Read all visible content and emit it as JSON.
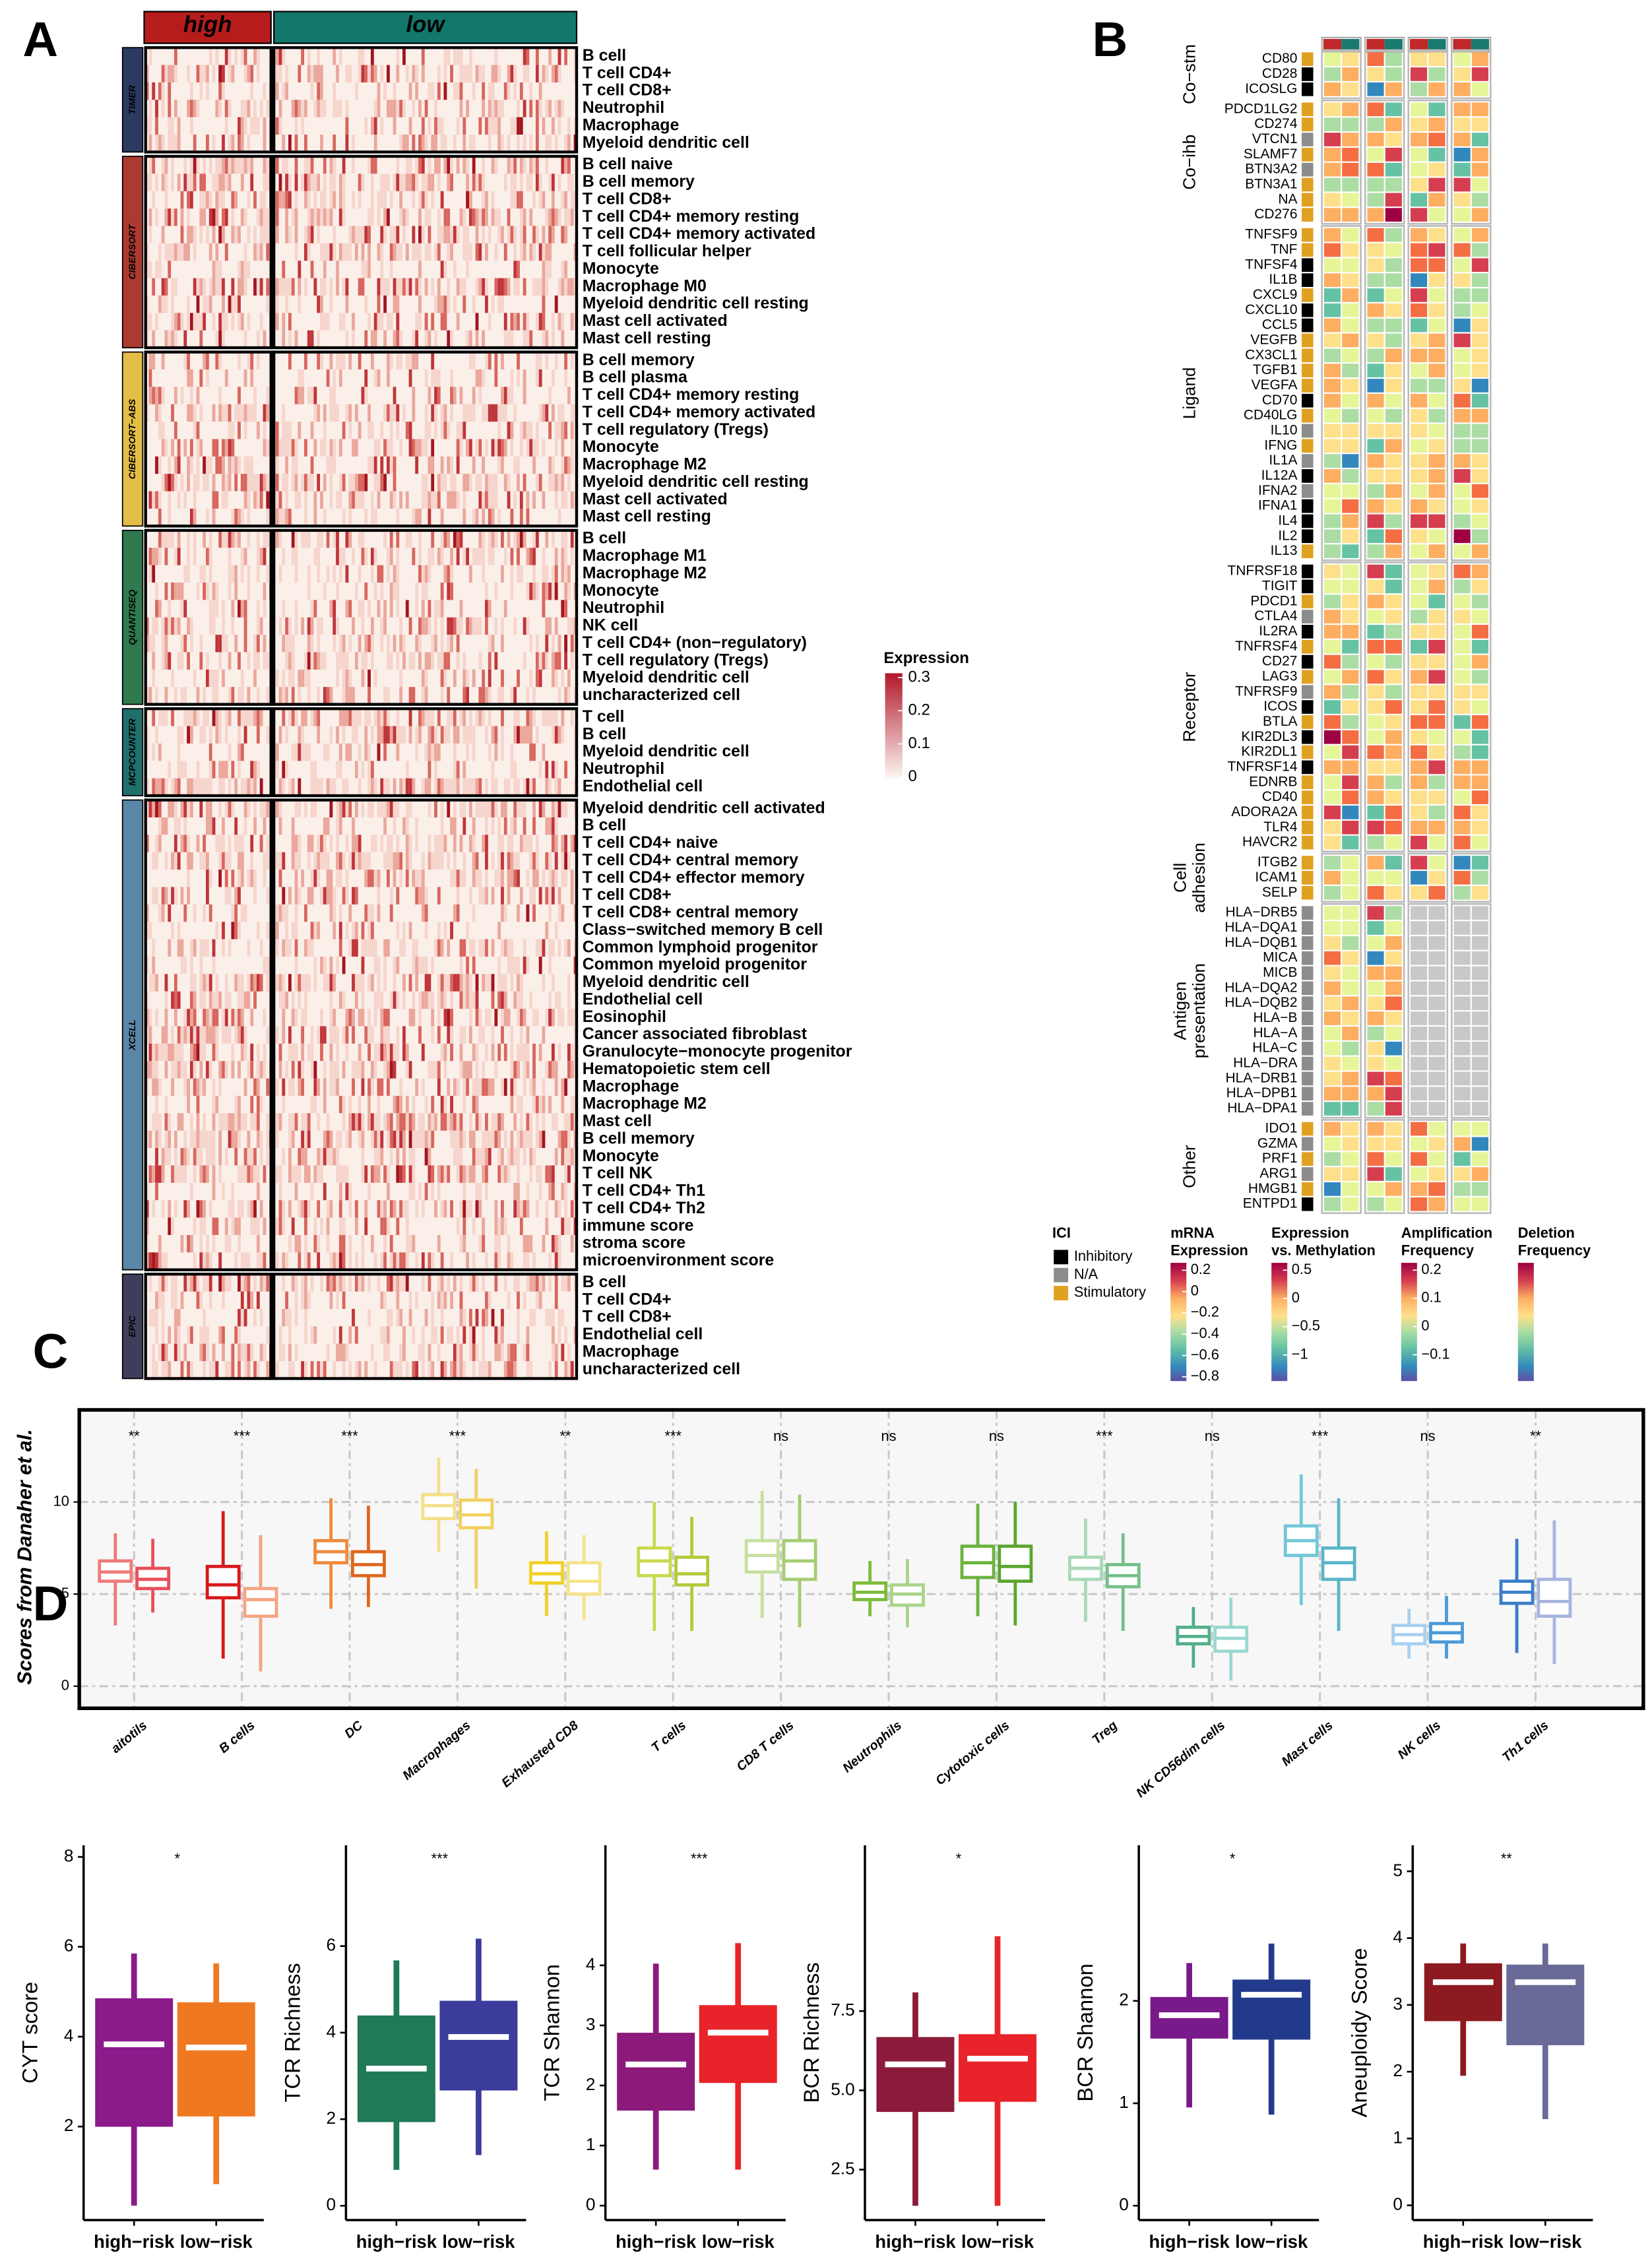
{
  "chart_data": [
    {
      "type": "heatmap",
      "panel": "A",
      "columns": [
        "high",
        "low"
      ],
      "column_colors": [
        "#b71c1c",
        "#13776b"
      ],
      "groups": [
        {
          "name": "TIMER",
          "color": "#2c3a62",
          "rows": [
            "B cell",
            "T cell CD4+",
            "T cell CD8+",
            "Neutrophil",
            "Macrophage",
            "Myeloid dendritic cell"
          ]
        },
        {
          "name": "CIBERSORT",
          "color": "#ab3a30",
          "rows": [
            "B cell naive",
            "B cell memory",
            "T cell CD8+",
            "T cell CD4+ memory resting",
            "T cell CD4+ memory activated",
            "T cell follicular helper",
            "Monocyte",
            "Macrophage M0",
            "Myeloid dendritic cell resting",
            "Mast cell activated",
            "Mast cell resting"
          ]
        },
        {
          "name": "CIBERSORT−ABS",
          "color": "#e3bd45",
          "rows": [
            "B cell memory",
            "B cell plasma",
            "T cell CD4+ memory resting",
            "T cell CD4+ memory activated",
            "T cell regulatory (Tregs)",
            "Monocyte",
            "Macrophage M2",
            "Myeloid dendritic cell resting",
            "Mast cell activated",
            "Mast cell resting"
          ]
        },
        {
          "name": "QUANTISEQ",
          "color": "#2f7a4e",
          "rows": [
            "B cell",
            "Macrophage M1",
            "Macrophage M2",
            "Monocyte",
            "Neutrophil",
            "NK cell",
            "T cell CD4+ (non−regulatory)",
            "T cell regulatory (Tregs)",
            "Myeloid dendritic cell",
            "uncharacterized cell"
          ]
        },
        {
          "name": "MCPCOUNTER",
          "color": "#1f6f6b",
          "rows": [
            "T cell",
            "B cell",
            "Myeloid dendritic cell",
            "Neutrophil",
            "Endothelial cell"
          ]
        },
        {
          "name": "XCELL",
          "color": "#5a86a8",
          "rows": [
            "Myeloid dendritic cell activated",
            "B cell",
            "T cell CD4+ naive",
            "T cell CD4+ central memory",
            "T cell CD4+ effector memory",
            "T cell CD8+",
            "T cell CD8+ central memory",
            "Class−switched memory B cell",
            "Common lymphoid progenitor",
            "Common myeloid progenitor",
            "Myeloid dendritic cell",
            "Endothelial cell",
            "Eosinophil",
            "Cancer associated fibroblast",
            "Granulocyte−monocyte progenitor",
            "Hematopoietic stem cell",
            "Macrophage",
            "Macrophage M2",
            "Mast cell",
            "B cell memory",
            "Monocyte",
            "T cell NK",
            "T cell CD4+ Th1",
            "T cell CD4+ Th2",
            "immune score",
            "stroma score",
            "microenvironment score"
          ]
        },
        {
          "name": "EPIC",
          "color": "#3d3f5a",
          "rows": [
            "B cell",
            "T cell CD4+",
            "T cell CD8+",
            "Endothelial cell",
            "Macrophage",
            "uncharacterized cell"
          ]
        }
      ],
      "legend_title": "Expression",
      "colorbar_lim": [
        0,
        0.3
      ],
      "colorbar_ticks": [
        0.3,
        0.2,
        0.1,
        0
      ],
      "colorbar_colors": [
        "#fdf6f2",
        "#b2182b"
      ]
    },
    {
      "type": "heatmap",
      "panel": "B",
      "groups": [
        {
          "name": [
            "Co−stm"
          ],
          "rows": [
            "CD80",
            "CD28",
            "ICOSLG"
          ]
        },
        {
          "name": [
            "Co−ihb"
          ],
          "rows": [
            "PDCD1LG2",
            "CD274",
            "VTCN1",
            "SLAMF7",
            "BTN3A2",
            "BTN3A1",
            "NA",
            "CD276"
          ]
        },
        {
          "name": [
            "Ligand"
          ],
          "rows": [
            "TNFSF9",
            "TNF",
            "TNFSF4",
            "IL1B",
            "CXCL9",
            "CXCL10",
            "CCL5",
            "VEGFB",
            "CX3CL1",
            "TGFB1",
            "VEGFA",
            "CD70",
            "CD40LG",
            "IL10",
            "IFNG",
            "IL1A",
            "IL12A",
            "IFNA2",
            "IFNA1",
            "IL4",
            "IL2",
            "IL13"
          ]
        },
        {
          "name": [
            "Receptor"
          ],
          "rows": [
            "TNFRSF18",
            "TIGIT",
            "PDCD1",
            "CTLA4",
            "IL2RA",
            "TNFRSF4",
            "CD27",
            "LAG3",
            "TNFRSF9",
            "ICOS",
            "BTLA",
            "KIR2DL3",
            "KIR2DL1",
            "TNFRSF14",
            "EDNRB",
            "CD40",
            "ADORA2A",
            "TLR4",
            "HAVCR2"
          ]
        },
        {
          "name": [
            "Cell",
            "adhesion"
          ],
          "rows": [
            "ITGB2",
            "ICAM1",
            "SELP"
          ]
        },
        {
          "name": [
            "Antigen",
            "presentation"
          ],
          "rows": [
            "HLA−DRB5",
            "HLA−DQA1",
            "HLA−DQB1",
            "MICA",
            "MICB",
            "HLA−DQA2",
            "HLA−DQB2",
            "HLA−B",
            "HLA−A",
            "HLA−C",
            "HLA−DRA",
            "HLA−DRB1",
            "HLA−DPB1",
            "HLA−DPA1"
          ]
        },
        {
          "name": [
            "Other"
          ],
          "rows": [
            "IDO1",
            "GZMA",
            "PRF1",
            "ARG1",
            "HMGB1",
            "ENTPD1"
          ]
        }
      ],
      "ici": {
        "title": "ICI",
        "items": [
          "Inhibitory",
          "N/A",
          "Stimulatory"
        ],
        "colors": [
          "#000000",
          "#8c8c8c",
          "#e0a020"
        ]
      },
      "colorbars": [
        {
          "title": [
            "mRNA",
            "Expression"
          ],
          "lim": [
            -0.84,
            0.27
          ],
          "ticks": [
            0.2,
            0,
            {
              "value": -0.2,
              "label": "−0.2"
            },
            {
              "value": -0.4,
              "label": "−0.4"
            },
            {
              "value": -0.6,
              "label": "−0.6"
            },
            {
              "value": -0.8,
              "label": "−0.8"
            }
          ]
        },
        {
          "title": [
            "Expression",
            "vs. Methylation"
          ],
          "lim": [
            -1.46,
            0.63
          ],
          "ticks": [
            0.5,
            0,
            {
              "value": -0.5,
              "label": "−0.5"
            },
            {
              "value": -1,
              "label": "−1"
            }
          ]
        },
        {
          "title": [
            "Amplification",
            "Frequency"
          ],
          "lim": [
            -0.193,
            0.226
          ],
          "ticks": [
            0.2,
            0.1,
            0,
            {
              "value": -0.1,
              "label": "−0.1"
            }
          ]
        },
        {
          "title": [
            "Deletion",
            "Frequency"
          ]
        }
      ],
      "column_colors": [
        "#c0282a",
        "#1a7a70"
      ]
    },
    {
      "type": "box",
      "panel": "C",
      "ylabel": "Scores from Danaher et al.",
      "categories": [
        "aitotils",
        "B cells",
        "DC",
        "Macrophages",
        "Exhausted CD8",
        "T cells",
        "CD8 T cells",
        "Neutrophils",
        "Cytotoxic cells",
        "Treg",
        "NK CD56dim cells",
        "Mast cells",
        "NK cells",
        "Th1 cells"
      ],
      "annotations": [
        "**",
        "***",
        "***",
        "***",
        "**",
        "***",
        "ns",
        "ns",
        "ns",
        "***",
        "ns",
        "***",
        "ns",
        "**"
      ],
      "series": [
        {
          "colors": [
            "#f07a7a",
            "#d7191c",
            "#f08a3c",
            "#f5df88",
            "#f0d028",
            "#c9d94e",
            "#c6df9e",
            "#7cbc3c",
            "#6db33f",
            "#a8d8b8",
            "#52b08a",
            "#72c8d8",
            "#a8d0f0",
            "#3a7ec8"
          ],
          "stats": [
            [
              3.3,
              5.7,
              6.2,
              6.8,
              8.3
            ],
            [
              1.5,
              4.8,
              5.5,
              6.5,
              9.5
            ],
            [
              4.2,
              6.7,
              7.3,
              7.9,
              10.2
            ],
            [
              7.3,
              9.1,
              9.8,
              10.4,
              12.4
            ],
            [
              3.8,
              5.6,
              6.1,
              6.7,
              8.4
            ],
            [
              3.0,
              6.0,
              6.8,
              7.5,
              10.0
            ],
            [
              3.7,
              6.2,
              7.1,
              7.9,
              10.6
            ],
            [
              3.8,
              4.7,
              5.1,
              5.6,
              6.8
            ],
            [
              3.8,
              5.9,
              6.7,
              7.6,
              9.9
            ],
            [
              3.5,
              5.8,
              6.4,
              7.0,
              9.1
            ],
            [
              1.0,
              2.3,
              2.7,
              3.2,
              4.3
            ],
            [
              4.4,
              7.1,
              7.9,
              8.7,
              11.5
            ],
            [
              1.5,
              2.3,
              2.8,
              3.3,
              4.2
            ],
            [
              1.8,
              4.5,
              5.1,
              5.7,
              8.0
            ]
          ]
        },
        {
          "colors": [
            "#e8505a",
            "#f4a582",
            "#e0661e",
            "#f2d060",
            "#f4e38a",
            "#b5c93a",
            "#a5cc72",
            "#a9d48a",
            "#5aa530",
            "#74c08a",
            "#9ad8d0",
            "#5ab4c8",
            "#4a9ad8",
            "#a8b4e0"
          ],
          "stats": [
            [
              4.0,
              5.3,
              5.8,
              6.4,
              8.0
            ],
            [
              0.8,
              3.8,
              4.7,
              5.3,
              8.2
            ],
            [
              4.3,
              6.0,
              6.6,
              7.3,
              9.8
            ],
            [
              5.3,
              8.6,
              9.3,
              10.1,
              11.8
            ],
            [
              3.6,
              5.0,
              5.7,
              6.7,
              8.2
            ],
            [
              3.0,
              5.5,
              6.1,
              7.0,
              9.2
            ],
            [
              3.2,
              5.8,
              6.8,
              7.9,
              10.4
            ],
            [
              3.2,
              4.4,
              5.0,
              5.5,
              6.9
            ],
            [
              3.3,
              5.7,
              6.5,
              7.6,
              10.0
            ],
            [
              3.0,
              5.4,
              6.0,
              6.6,
              8.3
            ],
            [
              0.3,
              1.9,
              2.6,
              3.2,
              4.8
            ],
            [
              3.0,
              5.8,
              6.7,
              7.5,
              10.2
            ],
            [
              1.5,
              2.4,
              2.9,
              3.4,
              4.9
            ],
            [
              1.2,
              3.8,
              4.6,
              5.8,
              9.0
            ]
          ]
        }
      ],
      "ylim": [
        -1.2,
        15
      ],
      "yticks": [
        0,
        5,
        10
      ],
      "grid": true
    },
    {
      "type": "box",
      "panel": "D",
      "ylabel": "CYT score",
      "categories": [
        "high−risk",
        "low−risk"
      ],
      "colors": [
        "#8b1a8b",
        "#f07820"
      ],
      "annotation": "*",
      "stats": [
        [
          0.24,
          2.06,
          3.83,
          4.79,
          5.85
        ],
        [
          0.72,
          2.29,
          3.76,
          4.7,
          5.63
        ]
      ],
      "ylim": [
        -0.08,
        8.26
      ],
      "yticks": [
        2,
        4,
        6,
        8
      ]
    },
    {
      "type": "box",
      "ylabel": "TCR Richness",
      "categories": [
        "high−risk",
        "low−risk"
      ],
      "colors": [
        "#1f7a55",
        "#3c3c9c"
      ],
      "annotation": "***",
      "stats": [
        [
          0.83,
          2.0,
          3.17,
          4.33,
          5.67
        ],
        [
          1.17,
          2.73,
          3.9,
          4.67,
          6.17
        ]
      ],
      "ylim": [
        -0.33,
        8.33
      ],
      "yticks": [
        0,
        2,
        4,
        6
      ]
    },
    {
      "type": "box",
      "ylabel": "TCR Shannon",
      "categories": [
        "high−risk",
        "low−risk"
      ],
      "colors": [
        "#8b1a7a",
        "#e8242a"
      ],
      "annotation": "***",
      "stats": [
        [
          0.6,
          1.63,
          2.35,
          2.83,
          4.03
        ],
        [
          0.6,
          2.09,
          2.88,
          3.29,
          4.37
        ]
      ],
      "ylim": [
        -0.24,
        6.0
      ],
      "yticks": [
        0,
        1,
        2,
        3,
        4
      ]
    },
    {
      "type": "box",
      "ylabel": "BCR Richness",
      "categories": [
        "high−risk",
        "low−risk"
      ],
      "colors": [
        "#8c1a3a",
        "#e8242a"
      ],
      "annotation": "*",
      "stats": [
        [
          1.36,
          4.41,
          5.82,
          6.59,
          8.09
        ],
        [
          1.36,
          4.73,
          6.0,
          6.68,
          9.86
        ]
      ],
      "ylim": [
        0.91,
        12.73
      ],
      "yticks": [
        2.5,
        {
          "value": 5,
          "label": "5.0"
        },
        7.5
      ]
    },
    {
      "type": "box",
      "ylabel": "BCR Shannon",
      "categories": [
        "high−risk",
        "low−risk"
      ],
      "colors": [
        "#7a1a8a",
        "#223a8c"
      ],
      "annotation": "*",
      "stats": [
        [
          0.96,
          1.66,
          1.86,
          2.01,
          2.37
        ],
        [
          0.89,
          1.65,
          2.06,
          2.18,
          2.56
        ]
      ],
      "ylim": [
        -0.14,
        3.52
      ],
      "yticks": [
        0,
        1,
        2
      ]
    },
    {
      "type": "box",
      "ylabel": "Aneuploidy Score",
      "categories": [
        "high−risk",
        "low−risk"
      ],
      "colors": [
        "#8c1a20",
        "#6a6a98"
      ],
      "annotation": "**",
      "stats": [
        [
          1.94,
          2.8,
          3.34,
          3.58,
          3.92
        ],
        [
          1.29,
          2.44,
          3.34,
          3.56,
          3.92
        ]
      ],
      "ylim": [
        -0.22,
        5.39
      ],
      "yticks": [
        0,
        1,
        2,
        3,
        4,
        5
      ]
    }
  ]
}
